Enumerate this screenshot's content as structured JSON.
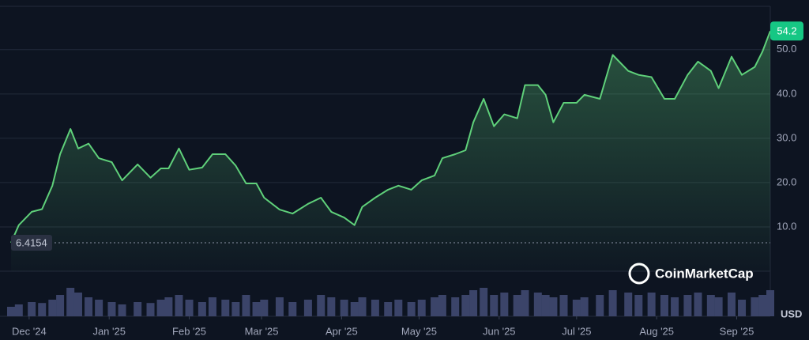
{
  "chart_data": {
    "type": "line",
    "x": [
      -7,
      -4,
      1,
      5,
      9,
      12,
      16,
      19,
      23,
      27,
      32,
      36,
      42,
      47,
      51,
      54,
      58,
      62,
      67,
      71,
      76,
      80,
      84,
      88,
      91,
      97,
      102,
      108,
      113,
      117,
      122,
      126,
      129,
      134,
      139,
      143,
      148,
      152,
      157,
      160,
      165,
      169,
      172,
      176,
      180,
      184,
      189,
      192,
      197,
      200,
      203,
      207,
      212,
      215,
      221,
      226,
      232,
      236,
      241,
      246,
      250,
      255,
      259,
      264,
      267,
      272,
      276,
      281,
      284,
      287
    ],
    "values": [
      6.4154,
      10.4,
      13.4,
      14,
      19.3,
      26.4,
      32.1,
      27.7,
      28.8,
      25.5,
      24.6,
      20.5,
      24.1,
      21.1,
      23.2,
      23.2,
      27.7,
      22.9,
      23.4,
      26.4,
      26.4,
      23.8,
      19.8,
      19.8,
      16.6,
      13.9,
      13,
      15.2,
      16.6,
      13.4,
      12.1,
      10.4,
      14.5,
      16.6,
      18.4,
      19.3,
      18.4,
      20.5,
      21.6,
      25.5,
      26.4,
      27.3,
      33.6,
      38.9,
      32.7,
      35.4,
      34.5,
      42,
      42,
      39.8,
      33.6,
      38,
      38,
      39.8,
      38.9,
      48.8,
      45.2,
      44.3,
      43.8,
      38.9,
      38.9,
      44.3,
      47.3,
      45.2,
      41.3,
      48.4,
      44.3,
      46.1,
      49.6,
      54.2
    ],
    "volume": [
      20,
      25,
      30,
      28,
      35,
      45,
      60,
      50,
      40,
      35,
      30,
      25,
      30,
      28,
      35,
      40,
      45,
      35,
      30,
      40,
      35,
      30,
      45,
      30,
      35,
      40,
      30,
      35,
      45,
      40,
      35,
      30,
      40,
      35,
      30,
      35,
      30,
      35,
      40,
      45,
      40,
      45,
      55,
      60,
      45,
      50,
      45,
      55,
      50,
      45,
      40,
      45,
      35,
      40,
      45,
      55,
      50,
      45,
      50,
      45,
      40,
      45,
      50,
      45,
      40,
      50,
      35,
      40,
      45,
      55
    ],
    "color": "#5fd07a",
    "volume_color": "#3b4469",
    "xlim": [
      -7,
      287
    ],
    "ylim": [
      0,
      61.2
    ],
    "xticks": [
      {
        "value": 0,
        "label": "Dec '24"
      },
      {
        "value": 31,
        "label": "Jan '25"
      },
      {
        "value": 62,
        "label": "Feb '25"
      },
      {
        "value": 90,
        "label": "Mar '25"
      },
      {
        "value": 121,
        "label": "Apr '25"
      },
      {
        "value": 151,
        "label": "May '25"
      },
      {
        "value": 182,
        "label": "Jun '25"
      },
      {
        "value": 212,
        "label": "Jul '25"
      },
      {
        "value": 243,
        "label": "Aug '25"
      },
      {
        "value": 274,
        "label": "Sep '25"
      }
    ],
    "yticks": [
      {
        "value": 10,
        "label": "10.0"
      },
      {
        "value": 20,
        "label": "20.0"
      },
      {
        "value": 30,
        "label": "30.0"
      },
      {
        "value": 40,
        "label": "40.0"
      },
      {
        "value": 50,
        "label": "50.0"
      }
    ],
    "grid": true,
    "start_price": 6.4154,
    "last_price": 54.2,
    "currency": "USD",
    "watermark": "CoinMarketCap"
  }
}
